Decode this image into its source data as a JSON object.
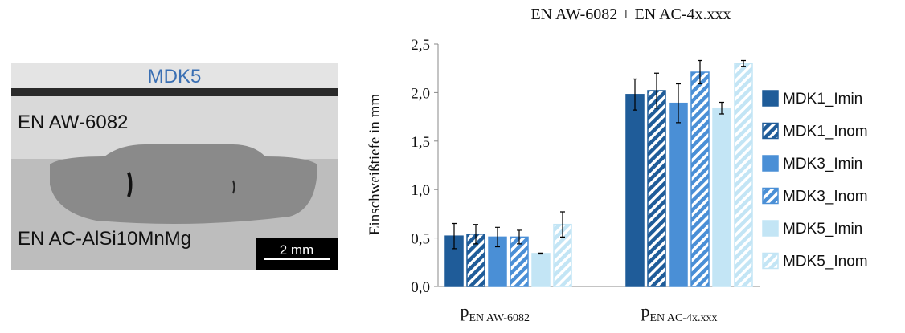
{
  "micrograph": {
    "title": "MDK5",
    "upper_label": "EN AW-6082",
    "lower_label": "EN AC-AlSi10MnMg",
    "scale_bar": "2 mm"
  },
  "chart_data": {
    "type": "bar",
    "title": "EN AW-6082 + EN AC-4x.xxx",
    "ylabel": "Einschweißtiefe in mm",
    "categories": [
      {
        "base": "p",
        "sub": "EN AW-6082"
      },
      {
        "base": "p",
        "sub": "EN AC-4x.xxx"
      }
    ],
    "ylim": [
      0,
      2.5
    ],
    "yticks": [
      {
        "value": 0,
        "label": "0,0"
      },
      {
        "value": 0.5,
        "label": "0,5"
      },
      {
        "value": 1,
        "label": "1,0"
      },
      {
        "value": 1.5,
        "label": "1,5"
      },
      {
        "value": 2,
        "label": "2,0"
      },
      {
        "value": 2.5,
        "label": "2,5"
      }
    ],
    "grid": false,
    "legend": "right",
    "series": [
      {
        "name": "MDK1_Imin",
        "color": "#1f5c99",
        "hatch": false,
        "values": [
          0.52,
          1.98
        ],
        "errors": [
          0.13,
          0.16
        ]
      },
      {
        "name": "MDK1_Inom",
        "color": "#1f5c99",
        "hatch": true,
        "values": [
          0.54,
          2.02
        ],
        "errors": [
          0.1,
          0.18
        ]
      },
      {
        "name": "MDK3_Imin",
        "color": "#4a8fd6",
        "hatch": false,
        "values": [
          0.51,
          1.89
        ],
        "errors": [
          0.1,
          0.2
        ]
      },
      {
        "name": "MDK3_Inom",
        "color": "#4a8fd6",
        "hatch": true,
        "values": [
          0.51,
          2.21
        ],
        "errors": [
          0.07,
          0.12
        ]
      },
      {
        "name": "MDK5_Imin",
        "color": "#c3e5f5",
        "hatch": false,
        "values": [
          0.34,
          1.84
        ],
        "errors": [
          0.005,
          0.06
        ]
      },
      {
        "name": "MDK5_Inom",
        "color": "#c3e5f5",
        "hatch": true,
        "values": [
          0.64,
          2.3
        ],
        "errors": [
          0.13,
          0.03
        ]
      }
    ]
  }
}
